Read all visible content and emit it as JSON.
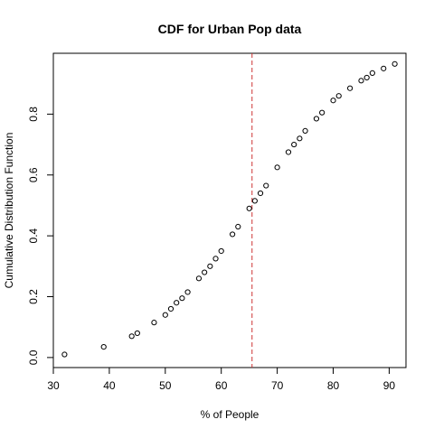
{
  "chart_data": {
    "type": "scatter",
    "title": "CDF for Urban Pop data",
    "xlabel": "% of People",
    "ylabel": "Cumulative Distribution Function",
    "xlim": [
      30,
      93
    ],
    "ylim": [
      0,
      1
    ],
    "x_ticks": [
      "30",
      "40",
      "50",
      "60",
      "70",
      "80",
      "90"
    ],
    "y_ticks": [
      "0.0",
      "0.2",
      "0.4",
      "0.6",
      "0.8"
    ],
    "grid": false,
    "marker": "open-circle",
    "reference_line": {
      "x": 65.5,
      "style": "dashed",
      "color": "#cc3333"
    },
    "points": [
      {
        "x": 32,
        "y": 0.01
      },
      {
        "x": 39,
        "y": 0.035
      },
      {
        "x": 44,
        "y": 0.07
      },
      {
        "x": 45,
        "y": 0.08
      },
      {
        "x": 48,
        "y": 0.115
      },
      {
        "x": 50,
        "y": 0.14
      },
      {
        "x": 51,
        "y": 0.16
      },
      {
        "x": 52,
        "y": 0.18
      },
      {
        "x": 53,
        "y": 0.195
      },
      {
        "x": 54,
        "y": 0.215
      },
      {
        "x": 56,
        "y": 0.26
      },
      {
        "x": 57,
        "y": 0.28
      },
      {
        "x": 58,
        "y": 0.3
      },
      {
        "x": 59,
        "y": 0.325
      },
      {
        "x": 60,
        "y": 0.35
      },
      {
        "x": 62,
        "y": 0.405
      },
      {
        "x": 63,
        "y": 0.43
      },
      {
        "x": 65,
        "y": 0.49
      },
      {
        "x": 66,
        "y": 0.515
      },
      {
        "x": 67,
        "y": 0.54
      },
      {
        "x": 68,
        "y": 0.565
      },
      {
        "x": 70,
        "y": 0.625
      },
      {
        "x": 72,
        "y": 0.675
      },
      {
        "x": 73,
        "y": 0.7
      },
      {
        "x": 74,
        "y": 0.72
      },
      {
        "x": 75,
        "y": 0.745
      },
      {
        "x": 77,
        "y": 0.785
      },
      {
        "x": 78,
        "y": 0.805
      },
      {
        "x": 80,
        "y": 0.845
      },
      {
        "x": 81,
        "y": 0.86
      },
      {
        "x": 83,
        "y": 0.885
      },
      {
        "x": 85,
        "y": 0.91
      },
      {
        "x": 86,
        "y": 0.92
      },
      {
        "x": 87,
        "y": 0.935
      },
      {
        "x": 89,
        "y": 0.95
      },
      {
        "x": 91,
        "y": 0.965
      }
    ]
  }
}
